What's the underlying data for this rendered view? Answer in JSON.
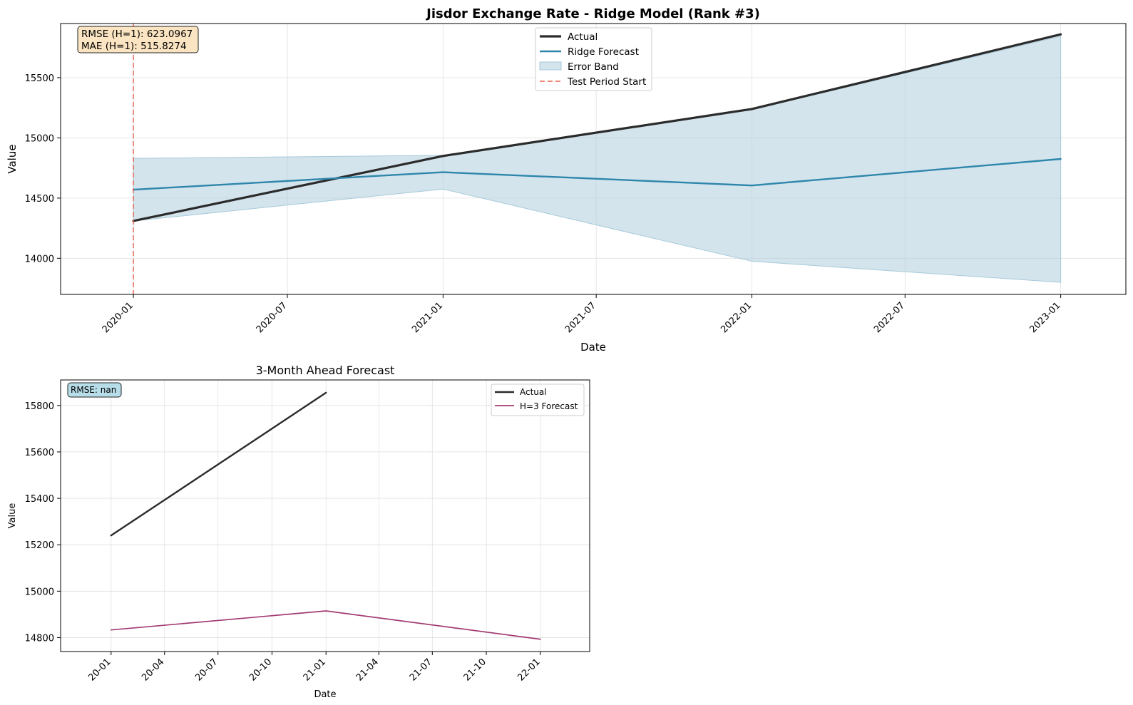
{
  "colors": {
    "actual": "#2b2b2b",
    "forecast": "#2e86ab",
    "band": "#a7cadb",
    "test_line": "#e8604c",
    "h3_forecast": "#a23b72",
    "annot_top_bg": "#fbe4c1",
    "annot_bottom_bg": "#b7dde8",
    "grid": "#e0e0e0"
  },
  "chart_data": [
    {
      "type": "line",
      "title": "Jisdor Exchange Rate - Ridge Model (Rank #3)",
      "xlabel": "Date",
      "ylabel": "Value",
      "xlim": [
        "2019-10-07",
        "2023-03-19"
      ],
      "ylim": [
        13700,
        15950
      ],
      "x_ticks": [
        "2020-01",
        "2020-07",
        "2021-01",
        "2021-07",
        "2022-01",
        "2022-07",
        "2023-01"
      ],
      "y_ticks": [
        14000,
        14500,
        15000,
        15500
      ],
      "grid": true,
      "legend_position": "top-center",
      "series": [
        {
          "name": "Actual",
          "x": [
            "2020-01-01",
            "2021-01-01",
            "2022-01-01",
            "2023-01-01"
          ],
          "values": [
            14310,
            14850,
            15240,
            15860
          ]
        },
        {
          "name": "Ridge Forecast",
          "x": [
            "2020-01-01",
            "2021-01-01",
            "2022-01-01",
            "2023-01-01"
          ],
          "values": [
            14570,
            14715,
            14605,
            14825
          ]
        }
      ],
      "error_band": {
        "name": "Error Band",
        "x": [
          "2020-01-01",
          "2021-01-01",
          "2022-01-01",
          "2023-01-01"
        ],
        "lower": [
          14310,
          14575,
          13975,
          13800
        ],
        "upper": [
          14830,
          14855,
          15235,
          15845
        ]
      },
      "vline": {
        "name": "Test Period Start",
        "x": "2020-01-01"
      },
      "annotation": [
        "RMSE (H=1): 623.0967",
        "MAE (H=1): 515.8274"
      ]
    },
    {
      "type": "line",
      "title": "3-Month Ahead Forecast",
      "xlabel": "Date",
      "ylabel": "Value",
      "xlim": [
        "2019-10-07",
        "2022-03-26"
      ],
      "ylim": [
        14740,
        15910
      ],
      "x_ticks": [
        "20-01",
        "20-04",
        "20-07",
        "20-10",
        "21-01",
        "21-04",
        "21-07",
        "21-10",
        "22-01"
      ],
      "y_ticks": [
        14800,
        15000,
        15200,
        15400,
        15600,
        15800
      ],
      "grid": true,
      "legend_position": "top-right",
      "series": [
        {
          "name": "Actual",
          "x": [
            "2020-01-01",
            "2021-01-01"
          ],
          "values": [
            15240,
            15855
          ]
        },
        {
          "name": "H=3 Forecast",
          "x": [
            "2020-01-01",
            "2021-01-01",
            "2022-01-01"
          ],
          "values": [
            14833,
            14915,
            14793
          ]
        }
      ],
      "annotation": [
        "RMSE: nan"
      ]
    }
  ]
}
